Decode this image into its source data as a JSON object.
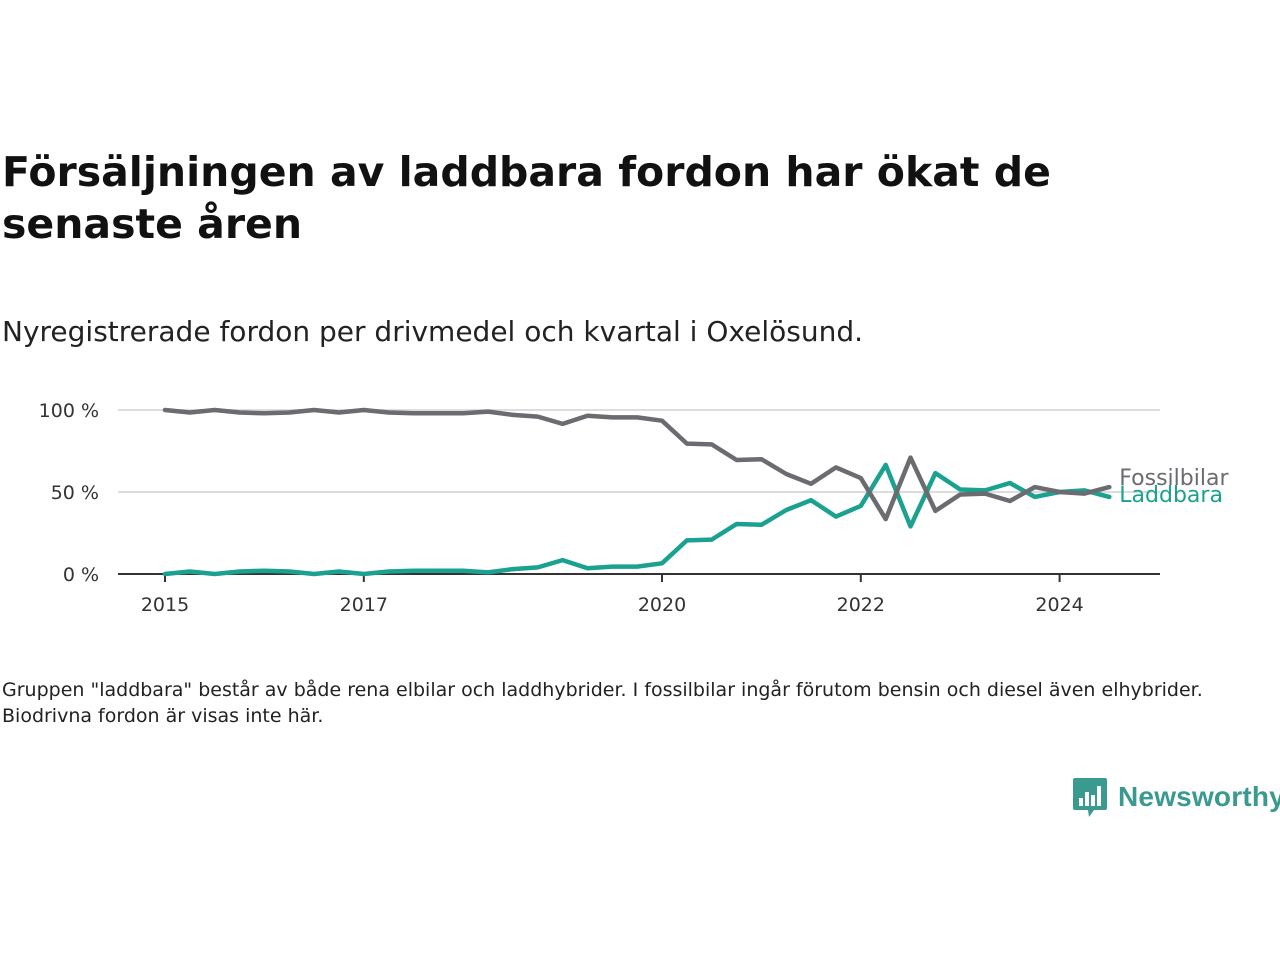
{
  "title": "Försäljningen av laddbara fordon har ökat de senaste åren",
  "subtitle": "Nyregistrerade fordon per drivmedel och kvartal i Oxelösund.",
  "footnote": "Gruppen \"laddbara\" består av både rena elbilar och laddhybrider. I fossilbilar ingår förutom bensin och diesel även elhybrider. Biodrivna fordon är visas inte här.",
  "brand": {
    "name": "Newsworthy",
    "icon": "newsworthy-logo-icon",
    "color": "#3a9a8f"
  },
  "chart_data": {
    "type": "line",
    "title": "",
    "xlabel": "",
    "ylabel": "",
    "y_unit": "%",
    "ylim": [
      0,
      100
    ],
    "y_ticks": [
      0,
      50,
      100
    ],
    "y_tick_labels": [
      "0 %",
      "50 %",
      "100 %"
    ],
    "x_ticks": [
      2015,
      2017,
      2020,
      2022,
      2024
    ],
    "x_tick_labels": [
      "2015",
      "2017",
      "2020",
      "2022",
      "2024"
    ],
    "grid": "horizontal",
    "x": [
      "2015-Q1",
      "2015-Q2",
      "2015-Q3",
      "2015-Q4",
      "2016-Q1",
      "2016-Q2",
      "2016-Q3",
      "2016-Q4",
      "2017-Q1",
      "2017-Q2",
      "2017-Q3",
      "2017-Q4",
      "2018-Q1",
      "2018-Q2",
      "2018-Q3",
      "2018-Q4",
      "2019-Q1",
      "2019-Q2",
      "2019-Q3",
      "2019-Q4",
      "2020-Q1",
      "2020-Q2",
      "2020-Q3",
      "2020-Q4",
      "2021-Q1",
      "2021-Q2",
      "2021-Q3",
      "2021-Q4",
      "2022-Q1",
      "2022-Q2",
      "2022-Q3",
      "2022-Q4",
      "2023-Q1",
      "2023-Q2",
      "2023-Q3",
      "2023-Q4",
      "2024-Q1",
      "2024-Q2",
      "2024-Q3"
    ],
    "series": [
      {
        "name": "Fossilbilar",
        "color": "#6b6b70",
        "values": [
          100,
          98.5,
          100,
          98.5,
          98,
          98.5,
          100,
          98.5,
          100,
          98.5,
          98,
          98,
          98,
          99,
          97,
          96,
          91.5,
          96.5,
          95.5,
          95.5,
          93.5,
          79.5,
          79,
          69.5,
          70,
          61,
          55,
          65,
          58.5,
          33.5,
          71,
          38.5,
          48.5,
          49,
          44.5,
          53,
          50,
          49,
          53
        ]
      },
      {
        "name": "Laddbara",
        "color": "#1aa190",
        "values": [
          0,
          1.5,
          0,
          1.5,
          2,
          1.5,
          0,
          1.5,
          0,
          1.5,
          2,
          2,
          2,
          1,
          3,
          4,
          8.5,
          3.5,
          4.5,
          4.5,
          6.5,
          20.5,
          21,
          30.5,
          30,
          39,
          45,
          35,
          41.5,
          66.5,
          29,
          61.5,
          51.5,
          51,
          55.5,
          47,
          50,
          51,
          47
        ]
      }
    ]
  }
}
